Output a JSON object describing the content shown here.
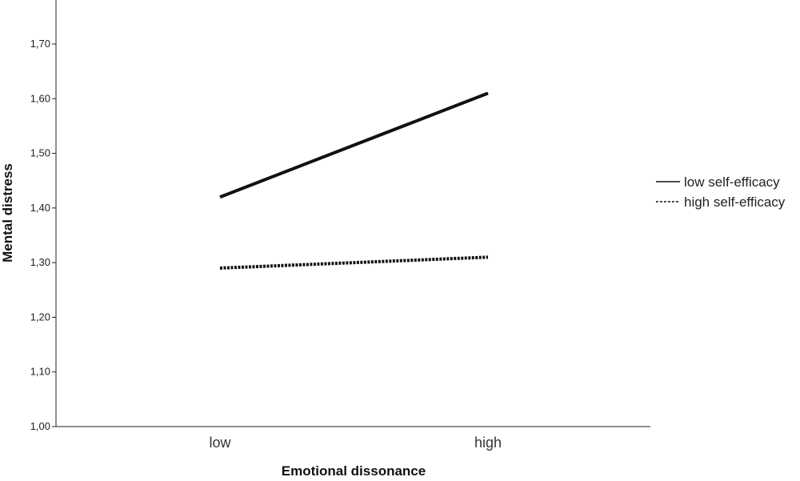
{
  "chart_data": {
    "type": "line",
    "categories": [
      "low",
      "high"
    ],
    "xlabel": "Emotional dissonance",
    "ylabel": "Mental distress",
    "ylim": [
      1.0,
      1.77
    ],
    "yticks": [
      "1,00",
      "1,10",
      "1,20",
      "1,30",
      "1,40",
      "1,50",
      "1,60",
      "1,70"
    ],
    "ytick_values": [
      1.0,
      1.1,
      1.2,
      1.3,
      1.4,
      1.5,
      1.6,
      1.7
    ],
    "grid": false,
    "legend_position": "right",
    "series": [
      {
        "name": "low self-efficacy",
        "values": [
          1.42,
          1.61
        ],
        "style": "solid",
        "color": "#111111"
      },
      {
        "name": "high self-efficacy",
        "values": [
          1.29,
          1.31
        ],
        "style": "dotted",
        "color": "#111111"
      }
    ]
  }
}
